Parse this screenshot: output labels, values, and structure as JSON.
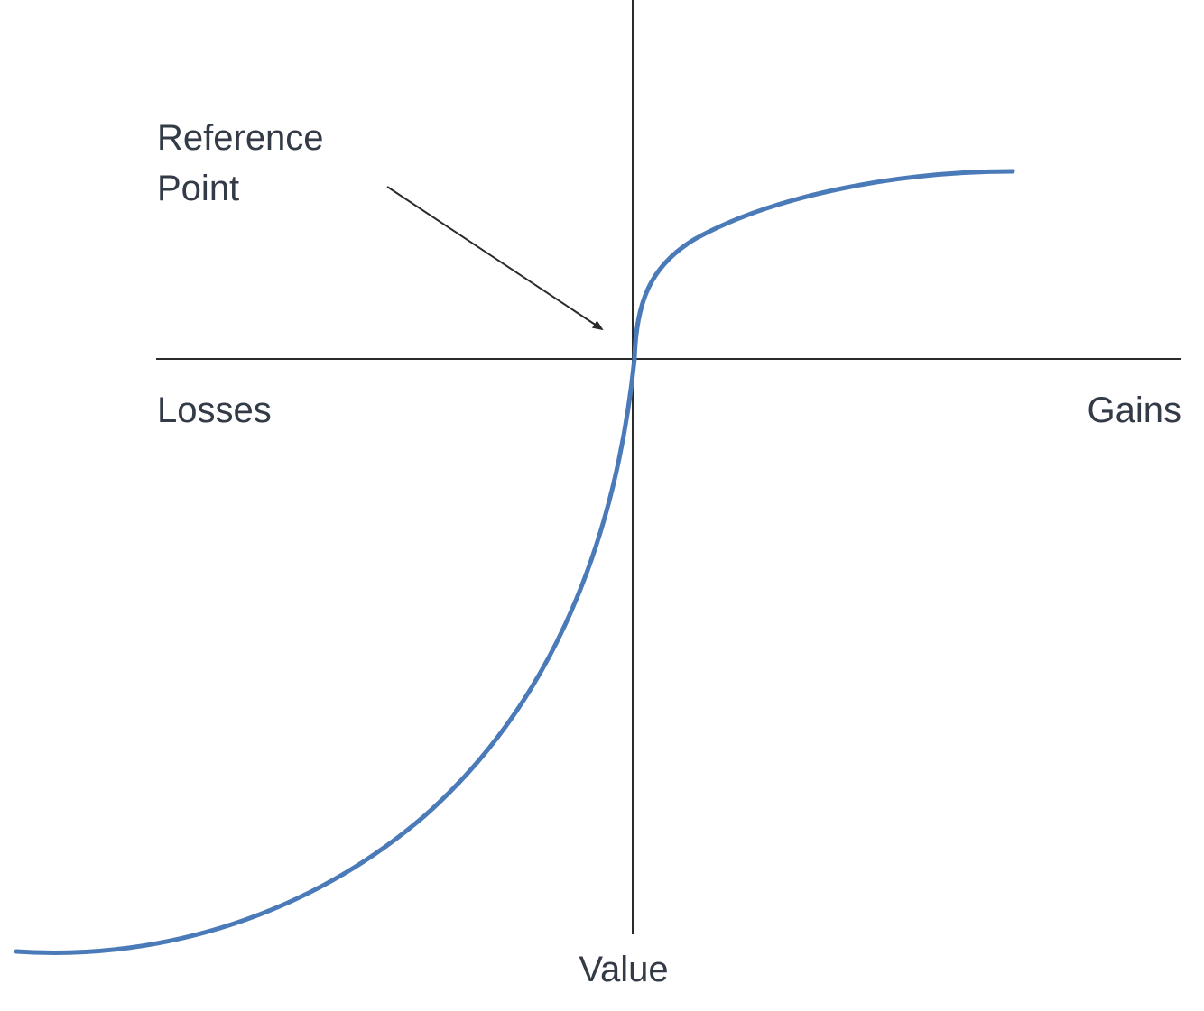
{
  "labels": {
    "reference_line1": "Reference",
    "reference_line2": "Point",
    "losses": "Losses",
    "gains": "Gains",
    "value": "Value"
  },
  "colors": {
    "curve": "#4a7ab8",
    "axis": "#2b2b2b",
    "text": "#333b47"
  }
}
